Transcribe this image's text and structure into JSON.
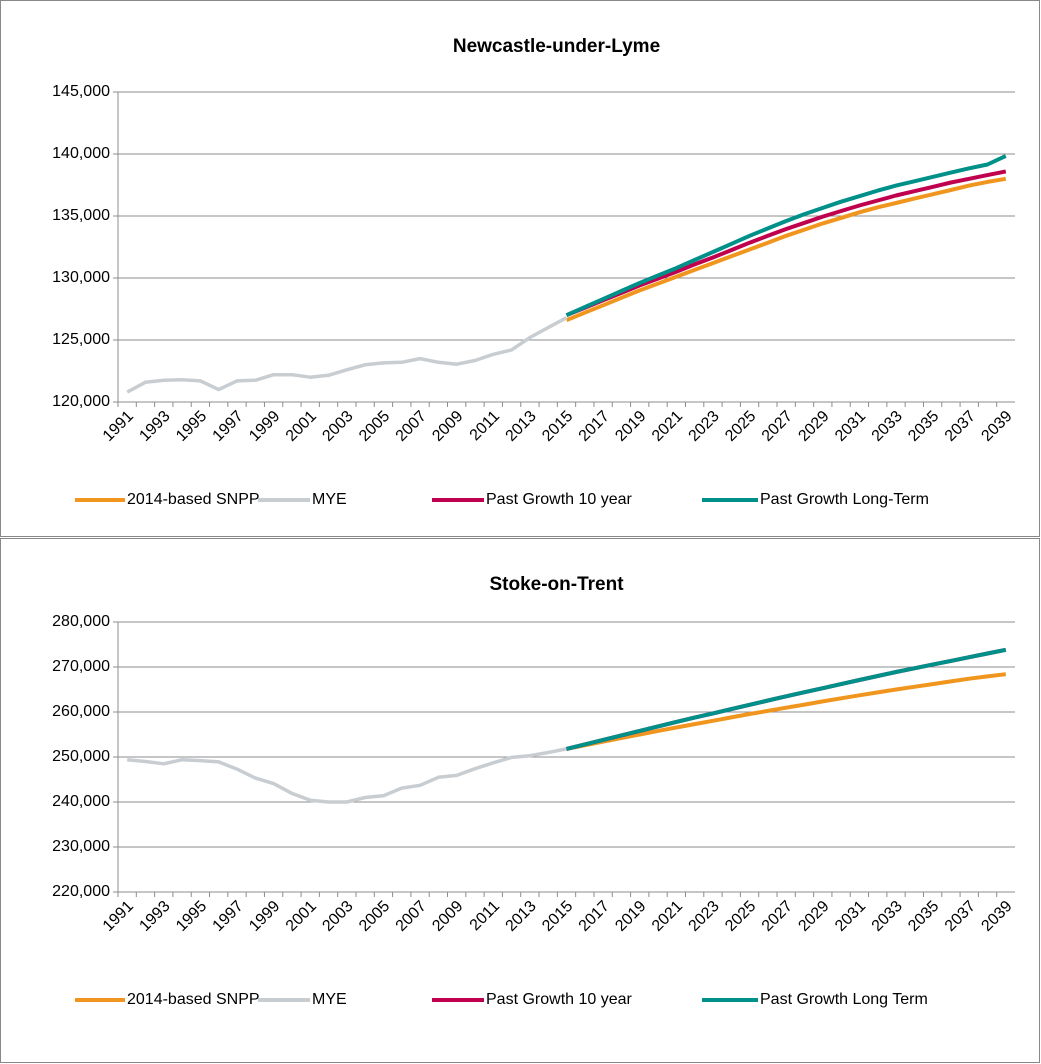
{
  "chart_data": [
    {
      "type": "line",
      "title": "Newcastle-under-Lyme",
      "categories": [
        "1991",
        null,
        "1993",
        null,
        "1995",
        null,
        "1997",
        null,
        "1999",
        null,
        "2001",
        null,
        "2003",
        null,
        "2005",
        null,
        "2007",
        null,
        "2009",
        null,
        "2011",
        null,
        "2013",
        null,
        "2015",
        null,
        "2017",
        null,
        "2019",
        null,
        "2021",
        null,
        "2023",
        null,
        "2025",
        null,
        "2027",
        null,
        "2029",
        null,
        "2031",
        null,
        "2033",
        null,
        "2035",
        null,
        "2037",
        null,
        "2039"
      ],
      "ylim": [
        120000,
        145000
      ],
      "yticks": [
        {
          "value": 120000,
          "label": "120,000"
        },
        {
          "value": 125000,
          "label": "125,000"
        },
        {
          "value": 130000,
          "label": "130,000"
        },
        {
          "value": 135000,
          "label": "135,000"
        },
        {
          "value": 140000,
          "label": "140,000"
        },
        {
          "value": 145000,
          "label": "145,000"
        }
      ],
      "grid": true,
      "series": [
        {
          "name": "2014-based SNPP",
          "color": "#f0961e",
          "values": [
            null,
            null,
            null,
            null,
            null,
            null,
            null,
            null,
            null,
            null,
            null,
            null,
            null,
            null,
            null,
            null,
            null,
            null,
            null,
            null,
            null,
            null,
            null,
            null,
            126600,
            127200,
            127800,
            128400,
            129000,
            129550,
            130100,
            130650,
            131200,
            131750,
            132300,
            132850,
            133400,
            133900,
            134400,
            134850,
            135300,
            135700,
            136050,
            136400,
            136750,
            137100,
            137450,
            137750,
            138000
          ]
        },
        {
          "name": "MYE",
          "color": "#c8cdd2",
          "values": [
            120800,
            121600,
            121750,
            121800,
            121700,
            121000,
            121700,
            121750,
            122200,
            122200,
            122000,
            122150,
            122600,
            123000,
            123150,
            123200,
            123500,
            123200,
            123050,
            123350,
            123850,
            124200,
            125200,
            126000,
            126800,
            null,
            null,
            null,
            null,
            null,
            null,
            null,
            null,
            null,
            null,
            null,
            null,
            null,
            null,
            null,
            null,
            null,
            null,
            null,
            null,
            null,
            null,
            null,
            null
          ]
        },
        {
          "name": "Past Growth 10 year",
          "color": "#c0004e",
          "values": [
            null,
            null,
            null,
            null,
            null,
            null,
            null,
            null,
            null,
            null,
            null,
            null,
            null,
            null,
            null,
            null,
            null,
            null,
            null,
            null,
            null,
            null,
            null,
            null,
            127000,
            127600,
            128200,
            128800,
            129400,
            129950,
            130500,
            131100,
            131650,
            132250,
            132850,
            133400,
            133950,
            134450,
            134950,
            135400,
            135850,
            136250,
            136650,
            137000,
            137350,
            137700,
            138000,
            138300,
            138600
          ]
        },
        {
          "name": "Past Growth Long-Term",
          "color": "#00908a",
          "values": [
            null,
            null,
            null,
            null,
            null,
            null,
            null,
            null,
            null,
            null,
            null,
            null,
            null,
            null,
            null,
            null,
            null,
            null,
            null,
            null,
            null,
            null,
            null,
            null,
            127000,
            127650,
            128300,
            128950,
            129600,
            130200,
            130800,
            131450,
            132100,
            132750,
            133400,
            134000,
            134600,
            135150,
            135650,
            136150,
            136600,
            137050,
            137450,
            137800,
            138150,
            138500,
            138850,
            139150,
            139850
          ]
        }
      ]
    },
    {
      "type": "line",
      "title": "Stoke-on-Trent",
      "categories": [
        "1991",
        null,
        "1993",
        null,
        "1995",
        null,
        "1997",
        null,
        "1999",
        null,
        "2001",
        null,
        "2003",
        null,
        "2005",
        null,
        "2007",
        null,
        "2009",
        null,
        "2011",
        null,
        "2013",
        null,
        "2015",
        null,
        "2017",
        null,
        "2019",
        null,
        "2021",
        null,
        "2023",
        null,
        "2025",
        null,
        "2027",
        null,
        "2029",
        null,
        "2031",
        null,
        "2033",
        null,
        "2035",
        null,
        "2037",
        null,
        "2039"
      ],
      "ylim": [
        220000,
        280000
      ],
      "yticks": [
        {
          "value": 220000,
          "label": "220,000"
        },
        {
          "value": 230000,
          "label": "230,000"
        },
        {
          "value": 240000,
          "label": "240,000"
        },
        {
          "value": 250000,
          "label": "250,000"
        },
        {
          "value": 260000,
          "label": "260,000"
        },
        {
          "value": 270000,
          "label": "270,000"
        },
        {
          "value": 280000,
          "label": "280,000"
        }
      ],
      "grid": true,
      "series": [
        {
          "name": "2014-based SNPP",
          "color": "#f0961e",
          "values": [
            null,
            null,
            null,
            null,
            null,
            null,
            null,
            null,
            null,
            null,
            null,
            null,
            null,
            null,
            null,
            null,
            null,
            null,
            null,
            null,
            null,
            null,
            null,
            null,
            251800,
            252600,
            253400,
            254200,
            255000,
            255800,
            256550,
            257300,
            258050,
            258800,
            259550,
            260250,
            260950,
            261650,
            262350,
            263050,
            263700,
            264350,
            265000,
            265600,
            266200,
            266800,
            267400,
            267900,
            268400
          ]
        },
        {
          "name": "MYE",
          "color": "#c8cdd2",
          "values": [
            249400,
            249000,
            248500,
            249400,
            249200,
            248900,
            247300,
            245300,
            244100,
            241900,
            240400,
            240000,
            240000,
            241000,
            241400,
            243100,
            243700,
            245500,
            245900,
            247400,
            248700,
            249900,
            250300,
            251000,
            251800,
            null,
            null,
            null,
            null,
            null,
            null,
            null,
            null,
            null,
            null,
            null,
            null,
            null,
            null,
            null,
            null,
            null,
            null,
            null,
            null,
            null,
            null,
            null,
            null
          ]
        },
        {
          "name": "Past Growth 10 year",
          "color": "#c0004e",
          "values": [
            null,
            null,
            null,
            null,
            null,
            null,
            null,
            null,
            null,
            null,
            null,
            null,
            null,
            null,
            null,
            null,
            null,
            null,
            null,
            null,
            null,
            null,
            null,
            null,
            251800,
            252800,
            253800,
            254800,
            255800,
            256800,
            257800,
            258750,
            259700,
            260650,
            261600,
            262550,
            263500,
            264400,
            265300,
            266200,
            267100,
            268000,
            268900,
            269720,
            270540,
            271360,
            272180,
            273000,
            273820
          ]
        },
        {
          "name": "Past Growth Long Term",
          "color": "#00908a",
          "values": [
            null,
            null,
            null,
            null,
            null,
            null,
            null,
            null,
            null,
            null,
            null,
            null,
            null,
            null,
            null,
            null,
            null,
            null,
            null,
            null,
            null,
            null,
            null,
            null,
            251800,
            252800,
            253800,
            254800,
            255800,
            256800,
            257800,
            258750,
            259700,
            260650,
            261600,
            262550,
            263500,
            264400,
            265300,
            266200,
            267100,
            268000,
            268900,
            269720,
            270540,
            271360,
            272180,
            273000,
            273820
          ]
        }
      ]
    }
  ]
}
